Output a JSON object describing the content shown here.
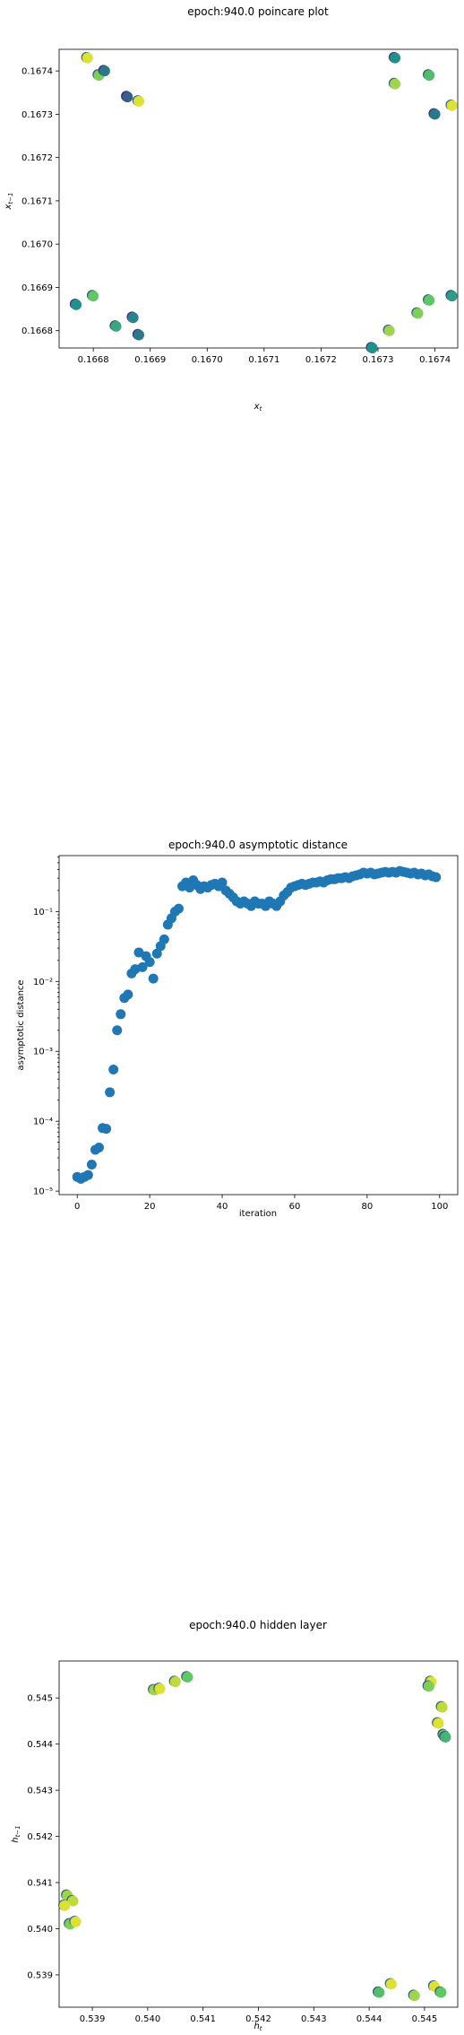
{
  "colors": {
    "scatter_blue": "#1f77b4",
    "viridis_dark": "#1f5e8c",
    "viridis_green": "#6ccd5a",
    "viridis_yellow": "#e8e419"
  },
  "chart_data": [
    {
      "type": "scatter",
      "title": "epoch:940.0 poincare plot",
      "xlabel": "x_t",
      "ylabel": "x_{t-1}",
      "xlim": [
        0.16674,
        0.16744
      ],
      "ylim": [
        0.16676,
        0.16745
      ],
      "xticks": [
        0.1668,
        0.1669,
        0.167,
        0.1671,
        0.1672,
        0.1673,
        0.1674
      ],
      "xtick_labels": [
        "0.1668",
        "0.1669",
        "0.1670",
        "0.1671",
        "0.1672",
        "0.1673",
        "0.1674"
      ],
      "yticks": [
        0.1668,
        0.1669,
        0.167,
        0.1671,
        0.1672,
        0.1673,
        0.1674
      ],
      "ytick_labels": [
        "0.1668",
        "0.1669",
        "0.1670",
        "0.1671",
        "0.1672",
        "0.1673",
        "0.1674"
      ],
      "colormap": "viridis",
      "points": [
        {
          "x": 0.16679,
          "y": 0.16743,
          "c": 0.95
        },
        {
          "x": 0.16681,
          "y": 0.16739,
          "c": 0.8
        },
        {
          "x": 0.16682,
          "y": 0.1674,
          "c": 0.4
        },
        {
          "x": 0.16686,
          "y": 0.16734,
          "c": 0.3
        },
        {
          "x": 0.16688,
          "y": 0.16733,
          "c": 0.95
        },
        {
          "x": 0.16677,
          "y": 0.16686,
          "c": 0.5
        },
        {
          "x": 0.1668,
          "y": 0.16688,
          "c": 0.75
        },
        {
          "x": 0.16684,
          "y": 0.16681,
          "c": 0.6
        },
        {
          "x": 0.16687,
          "y": 0.16683,
          "c": 0.45
        },
        {
          "x": 0.16688,
          "y": 0.16679,
          "c": 0.4
        },
        {
          "x": 0.16733,
          "y": 0.16743,
          "c": 0.5
        },
        {
          "x": 0.16733,
          "y": 0.16737,
          "c": 0.85
        },
        {
          "x": 0.16739,
          "y": 0.16739,
          "c": 0.7
        },
        {
          "x": 0.1674,
          "y": 0.1673,
          "c": 0.4
        },
        {
          "x": 0.16743,
          "y": 0.16732,
          "c": 0.95
        },
        {
          "x": 0.16729,
          "y": 0.16676,
          "c": 0.5
        },
        {
          "x": 0.16732,
          "y": 0.1668,
          "c": 0.85
        },
        {
          "x": 0.16737,
          "y": 0.16684,
          "c": 0.8
        },
        {
          "x": 0.16739,
          "y": 0.16687,
          "c": 0.75
        },
        {
          "x": 0.16743,
          "y": 0.16688,
          "c": 0.55
        }
      ]
    },
    {
      "type": "scatter",
      "title": "epoch:940.0 asymptotic distance",
      "xlabel": "iteration",
      "ylabel": "asymptotic distance",
      "yscale": "log",
      "xlim": [
        -5,
        105
      ],
      "ylim_log10": [
        -5.05,
        -0.2
      ],
      "xticks": [
        0,
        20,
        40,
        60,
        80,
        100
      ],
      "xtick_labels": [
        "0",
        "20",
        "40",
        "60",
        "80",
        "100"
      ],
      "yticks_log10": [
        -5,
        -4,
        -3,
        -2,
        -1
      ],
      "ytick_labels": [
        "10⁻⁵",
        "10⁻⁴",
        "10⁻³",
        "10⁻²",
        "10⁻¹"
      ],
      "x": [
        0,
        1,
        2,
        3,
        4,
        5,
        6,
        7,
        8,
        9,
        10,
        11,
        12,
        13,
        14,
        15,
        16,
        17,
        18,
        19,
        20,
        21,
        22,
        23,
        24,
        25,
        26,
        27,
        28,
        29,
        30,
        31,
        32,
        33,
        34,
        35,
        36,
        37,
        38,
        39,
        40,
        41,
        42,
        43,
        44,
        45,
        46,
        47,
        48,
        49,
        50,
        51,
        52,
        53,
        54,
        55,
        56,
        57,
        58,
        59,
        60,
        61,
        62,
        63,
        64,
        65,
        66,
        67,
        68,
        69,
        70,
        71,
        72,
        73,
        74,
        75,
        76,
        77,
        78,
        79,
        80,
        81,
        82,
        83,
        84,
        85,
        86,
        87,
        88,
        89,
        90,
        91,
        92,
        93,
        94,
        95,
        96,
        97,
        98,
        99
      ],
      "y": [
        1.6e-05,
        1.5e-05,
        1.6e-05,
        1.7e-05,
        2.4e-05,
        3.9e-05,
        4.2e-05,
        8e-05,
        7.8e-05,
        0.00026,
        0.00055,
        0.002,
        0.0034,
        0.0058,
        0.0065,
        0.013,
        0.015,
        0.026,
        0.016,
        0.023,
        0.019,
        0.011,
        0.025,
        0.032,
        0.04,
        0.065,
        0.08,
        0.1,
        0.11,
        0.23,
        0.26,
        0.22,
        0.28,
        0.24,
        0.21,
        0.23,
        0.22,
        0.24,
        0.25,
        0.23,
        0.26,
        0.2,
        0.18,
        0.16,
        0.14,
        0.13,
        0.14,
        0.13,
        0.12,
        0.14,
        0.13,
        0.13,
        0.12,
        0.14,
        0.13,
        0.12,
        0.14,
        0.17,
        0.19,
        0.22,
        0.23,
        0.24,
        0.25,
        0.24,
        0.25,
        0.26,
        0.26,
        0.27,
        0.26,
        0.28,
        0.29,
        0.29,
        0.3,
        0.3,
        0.31,
        0.3,
        0.32,
        0.33,
        0.34,
        0.36,
        0.35,
        0.36,
        0.34,
        0.35,
        0.36,
        0.37,
        0.36,
        0.37,
        0.36,
        0.38,
        0.37,
        0.36,
        0.35,
        0.36,
        0.34,
        0.35,
        0.33,
        0.34,
        0.32,
        0.31
      ]
    },
    {
      "type": "scatter",
      "title": "epoch:940.0 hidden layer",
      "xlabel": "h_t",
      "ylabel": "h_{t-1}",
      "xlim": [
        0.5384,
        0.5456
      ],
      "ylim": [
        0.5383,
        0.5458
      ],
      "xticks": [
        0.539,
        0.54,
        0.541,
        0.542,
        0.543,
        0.544,
        0.545
      ],
      "xtick_labels": [
        "0.539",
        "0.540",
        "0.541",
        "0.542",
        "0.543",
        "0.544",
        "0.545"
      ],
      "yticks": [
        0.539,
        0.54,
        0.541,
        0.542,
        0.543,
        0.544,
        0.545
      ],
      "ytick_labels": [
        "0.539",
        "0.540",
        "0.541",
        "0.542",
        "0.543",
        "0.544",
        "0.545"
      ],
      "colormap": "viridis",
      "points": [
        {
          "x": 0.54012,
          "y": 0.54517,
          "c": 0.85
        },
        {
          "x": 0.54022,
          "y": 0.5452,
          "c": 0.95
        },
        {
          "x": 0.5405,
          "y": 0.54535,
          "c": 0.9
        },
        {
          "x": 0.54072,
          "y": 0.54545,
          "c": 0.75
        },
        {
          "x": 0.53855,
          "y": 0.54072,
          "c": 0.85
        },
        {
          "x": 0.53865,
          "y": 0.5406,
          "c": 0.9
        },
        {
          "x": 0.5385,
          "y": 0.5405,
          "c": 0.95
        },
        {
          "x": 0.5386,
          "y": 0.5401,
          "c": 0.8
        },
        {
          "x": 0.5387,
          "y": 0.54015,
          "c": 0.95
        },
        {
          "x": 0.54512,
          "y": 0.54535,
          "c": 0.95
        },
        {
          "x": 0.54508,
          "y": 0.54525,
          "c": 0.8
        },
        {
          "x": 0.54532,
          "y": 0.5448,
          "c": 0.9
        },
        {
          "x": 0.54525,
          "y": 0.54445,
          "c": 0.95
        },
        {
          "x": 0.54535,
          "y": 0.5442,
          "c": 0.75
        },
        {
          "x": 0.54538,
          "y": 0.54415,
          "c": 0.65
        },
        {
          "x": 0.54418,
          "y": 0.53862,
          "c": 0.7
        },
        {
          "x": 0.5444,
          "y": 0.5388,
          "c": 0.95
        },
        {
          "x": 0.54482,
          "y": 0.53855,
          "c": 0.85
        },
        {
          "x": 0.54518,
          "y": 0.53875,
          "c": 0.95
        },
        {
          "x": 0.5453,
          "y": 0.53862,
          "c": 0.75
        }
      ]
    }
  ]
}
